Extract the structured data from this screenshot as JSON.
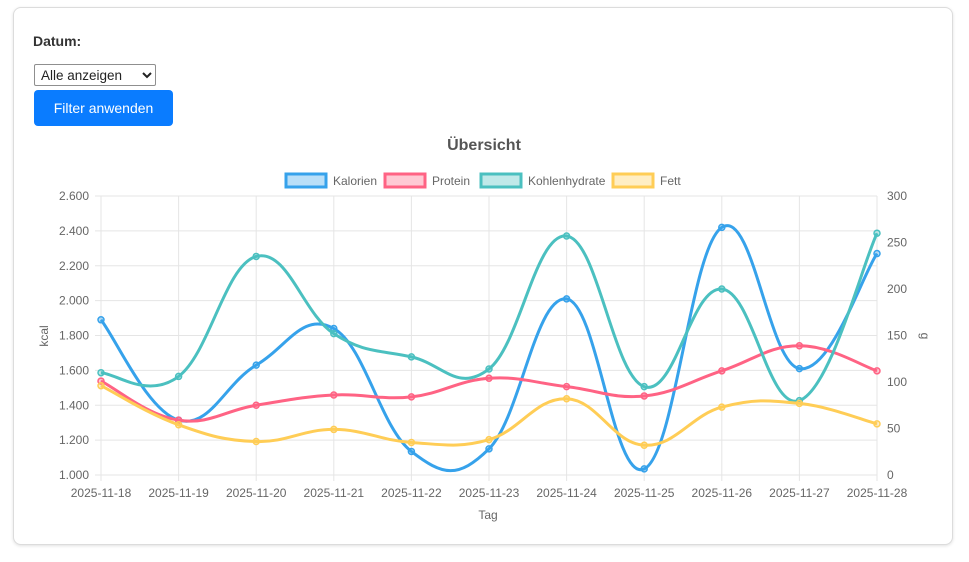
{
  "filter": {
    "label": "Datum:",
    "selected": "Alle anzeigen",
    "options": [
      "Alle anzeigen"
    ],
    "button_label": "Filter anwenden"
  },
  "chart_data": {
    "type": "line",
    "title": "Übersicht",
    "xlabel": "Tag",
    "ylabel_left": "kcal",
    "ylabel_right": "g",
    "categories": [
      "2025-11-18",
      "2025-11-19",
      "2025-11-20",
      "2025-11-21",
      "2025-11-22",
      "2025-11-23",
      "2025-11-24",
      "2025-11-25",
      "2025-11-26",
      "2025-11-27",
      "2025-11-28"
    ],
    "y_left": {
      "min": 1000,
      "max": 2600,
      "ticks": [
        "1.000",
        "1.200",
        "1.400",
        "1.600",
        "1.800",
        "2.000",
        "2.200",
        "2.400",
        "2.600"
      ]
    },
    "y_right": {
      "min": 0,
      "max": 300,
      "ticks": [
        "0",
        "50",
        "100",
        "150",
        "200",
        "250",
        "300"
      ]
    },
    "grid": true,
    "legend_position": "top",
    "series": [
      {
        "name": "Kalorien",
        "axis": "left",
        "color": "#36a2eb",
        "fill": "rgba(54,162,235,0.35)",
        "values": [
          1890,
          1315,
          1630,
          1840,
          1135,
          1150,
          2010,
          1035,
          2420,
          1610,
          2270
        ]
      },
      {
        "name": "Protein",
        "axis": "right",
        "color": "#ff6384",
        "fill": "rgba(255,99,132,0.35)",
        "values": [
          101,
          59,
          75,
          86,
          84,
          104,
          95,
          85,
          112,
          139,
          112
        ]
      },
      {
        "name": "Kohlenhydrate",
        "axis": "right",
        "color": "#4bc0c0",
        "fill": "rgba(75,192,192,0.35)",
        "values": [
          110,
          106,
          235,
          152,
          127,
          114,
          257,
          95,
          200,
          80,
          260
        ]
      },
      {
        "name": "Fett",
        "axis": "right",
        "color": "#ffcd56",
        "fill": "rgba(255,205,86,0.35)",
        "values": [
          96,
          54,
          36,
          49,
          35,
          38,
          82,
          32,
          73,
          77,
          55
        ]
      }
    ]
  }
}
